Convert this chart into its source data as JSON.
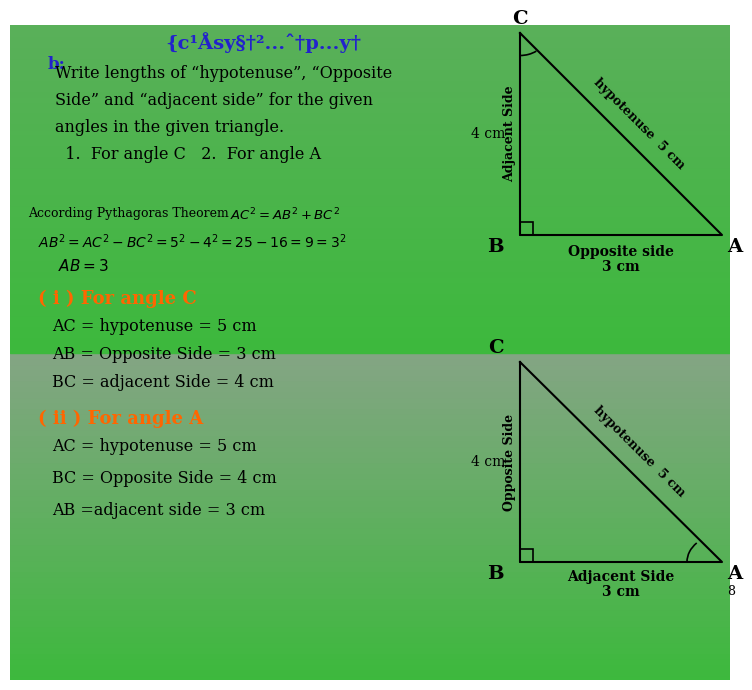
{
  "bg_top_color": "#3db93d",
  "bg_bottom_color": "#7a9e7a",
  "title_text": "{c¹Åsy§†²...ˆ†p...y†",
  "title_color": "#2222cc",
  "title_fontsize": 14,
  "header_b_color": "#2222cc",
  "according_text": "According Pythagoras Theorem",
  "part_i_color": "#ff6600",
  "part_i_text": "( i ) For angle C",
  "part_ii_color": "#ff6600",
  "part_ii_text": "( ii ) For angle A",
  "line1": "AC = hypotenuse = 5 cm",
  "line2": "AB = Opposite Side = 3 cm",
  "line3": "BC = adjacent Side = 4 cm",
  "line4": "AC = hypotenuse = 5 cm",
  "line5": "BC = Opposite Side = 4 cm",
  "line6": "AB =adjacent side = 3 cm",
  "num8": "8"
}
